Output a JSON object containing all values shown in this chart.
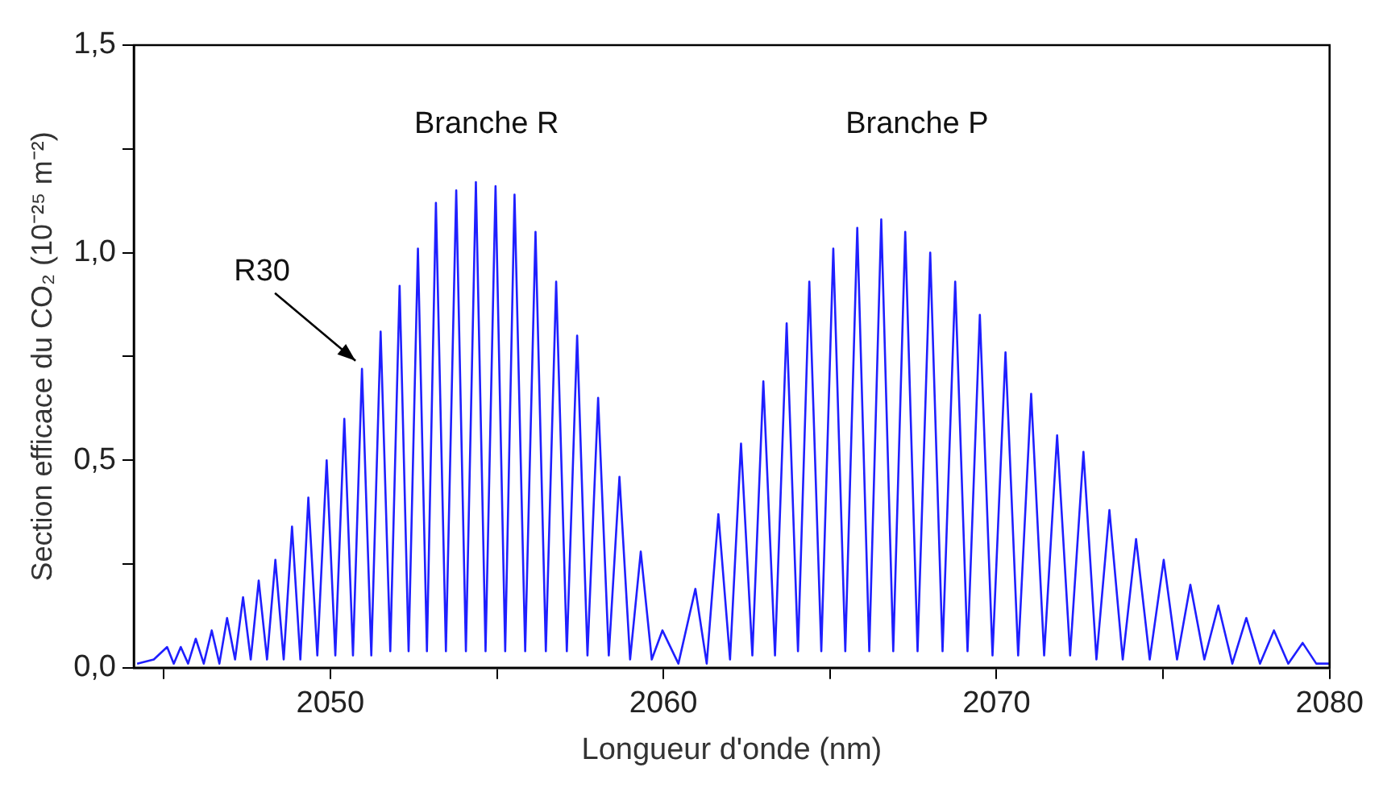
{
  "chart_data": {
    "type": "line",
    "xlabel": "Longueur d'onde (nm)",
    "ylabel": "Section efficace du CO₂ (10⁻²⁵ m⁻²)",
    "xlim": [
      2044.1,
      2080
    ],
    "xticks": [
      {
        "value": 2045,
        "label": null
      },
      2050,
      {
        "value": 2055,
        "label": null
      },
      2060,
      {
        "value": 2065,
        "label": null
      },
      2070,
      {
        "value": 2075,
        "label": null
      },
      2080
    ],
    "ylim": [
      0,
      1.5
    ],
    "yticks": [
      {
        "value": 0,
        "label": "0,0"
      },
      {
        "value": 0.25,
        "label": null
      },
      {
        "value": 0.5,
        "label": "0,5"
      },
      {
        "value": 0.75,
        "label": null
      },
      {
        "value": 1,
        "label": "1,0"
      },
      {
        "value": 1.25,
        "label": null
      },
      {
        "value": 1.5,
        "label": "1,5"
      }
    ],
    "grid": false,
    "legend": false,
    "annotations": [
      "Branche R",
      "Branche P",
      {
        "text": "R30",
        "x": 2050.95,
        "y": 0.72
      }
    ],
    "series": [
      {
        "color": "#1f1fff",
        "x": [
          2044.2,
          2044.7,
          2045.1,
          2045.3,
          2045.51,
          2045.73,
          2045.96,
          2046.2,
          2046.44,
          2046.67,
          2046.9,
          2047.14,
          2047.38,
          2047.61,
          2047.85,
          2048.1,
          2048.35,
          2048.6,
          2048.85,
          2049.1,
          2049.34,
          2049.61,
          2049.89,
          2050.15,
          2050.42,
          2050.68,
          2050.95,
          2051.23,
          2051.51,
          2051.8,
          2052.08,
          2052.35,
          2052.63,
          2052.9,
          2053.17,
          2053.47,
          2053.78,
          2054.07,
          2054.37,
          2054.66,
          2054.96,
          2055.25,
          2055.53,
          2055.85,
          2056.16,
          2056.47,
          2056.78,
          2057.1,
          2057.41,
          2057.72,
          2058.04,
          2058.36,
          2058.68,
          2059,
          2059.32,
          2059.65,
          2059.97,
          2060.45,
          2060.96,
          2061.3,
          2061.65,
          2062,
          2062.33,
          2062.67,
          2063,
          2063.35,
          2063.7,
          2064.04,
          2064.38,
          2064.74,
          2065.1,
          2065.46,
          2065.82,
          2066.18,
          2066.54,
          2066.9,
          2067.26,
          2067.63,
          2068.01,
          2068.38,
          2068.76,
          2069.13,
          2069.5,
          2069.88,
          2070.27,
          2070.65,
          2071.04,
          2071.43,
          2071.82,
          2072.21,
          2072.61,
          2073,
          2073.39,
          2073.79,
          2074.19,
          2074.6,
          2075.02,
          2075.42,
          2075.82,
          2076.24,
          2076.66,
          2077.08,
          2077.5,
          2077.91,
          2078.33,
          2078.76,
          2079.19,
          2079.6,
          2080
        ],
        "values": [
          0.01,
          0.02,
          0.05,
          0.01,
          0.05,
          0.01,
          0.07,
          0.01,
          0.09,
          0.01,
          0.12,
          0.02,
          0.17,
          0.02,
          0.21,
          0.02,
          0.26,
          0.02,
          0.34,
          0.02,
          0.41,
          0.03,
          0.5,
          0.03,
          0.6,
          0.03,
          0.72,
          0.03,
          0.81,
          0.04,
          0.92,
          0.04,
          1.01,
          0.04,
          1.12,
          0.04,
          1.15,
          0.04,
          1.17,
          0.04,
          1.16,
          0.04,
          1.14,
          0.04,
          1.05,
          0.04,
          0.93,
          0.04,
          0.8,
          0.03,
          0.65,
          0.03,
          0.46,
          0.02,
          0.28,
          0.02,
          0.09,
          0.01,
          0.19,
          0.01,
          0.37,
          0.02,
          0.54,
          0.03,
          0.69,
          0.03,
          0.83,
          0.04,
          0.93,
          0.04,
          1.01,
          0.04,
          1.06,
          0.04,
          1.08,
          0.04,
          1.05,
          0.04,
          1,
          0.04,
          0.93,
          0.04,
          0.85,
          0.03,
          0.76,
          0.03,
          0.66,
          0.03,
          0.56,
          0.03,
          0.52,
          0.02,
          0.38,
          0.02,
          0.31,
          0.02,
          0.26,
          0.02,
          0.2,
          0.02,
          0.15,
          0.01,
          0.12,
          0.01,
          0.09,
          0.01,
          0.06,
          0.01,
          0.01
        ]
      }
    ]
  }
}
